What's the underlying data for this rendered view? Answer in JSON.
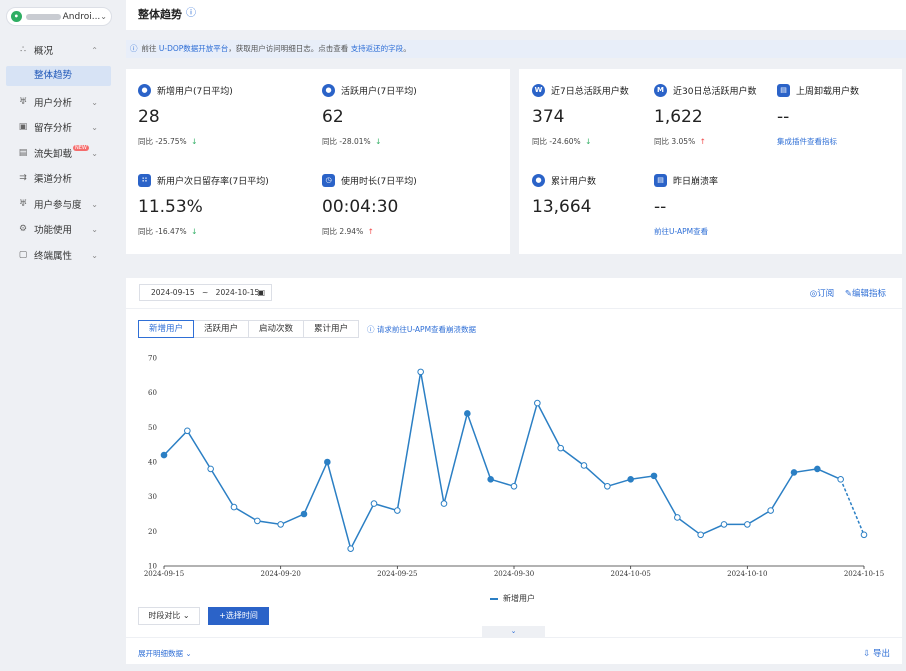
{
  "app": {
    "logo": "•",
    "name": "Androi..."
  },
  "sidebar": {
    "items": [
      {
        "label": "概况",
        "icon": "overview-icon",
        "glyph": "∴"
      },
      {
        "label": "整体趋势"
      },
      {
        "label": "用户分析",
        "icon": "user-analysis-icon",
        "glyph": "♅"
      },
      {
        "label": "留存分析",
        "icon": "retention-icon",
        "glyph": "▣"
      },
      {
        "label": "流失卸载",
        "icon": "churn-icon",
        "glyph": "▤",
        "badge": "NEW"
      },
      {
        "label": "渠道分析",
        "icon": "channel-icon",
        "glyph": "⇉"
      },
      {
        "label": "用户参与度",
        "icon": "engagement-icon",
        "glyph": "♅"
      },
      {
        "label": "功能使用",
        "icon": "feature-icon",
        "glyph": "⚙"
      },
      {
        "label": "终端属性",
        "icon": "device-icon",
        "glyph": "▢"
      }
    ]
  },
  "header": {
    "title": "整体趋势"
  },
  "notice": {
    "prefix": "前往 ",
    "link1": "U-DOP数据开放平台",
    "middle": "，获取用户访问明细日志。点击查看 ",
    "link2": "支持返还的字段",
    "suffix": "。"
  },
  "metrics": {
    "new_users": {
      "label": "新增用户(7日平均)",
      "value": "28",
      "cmp": "同比 -25.75%",
      "dir": "down"
    },
    "active_users": {
      "label": "活跃用户(7日平均)",
      "value": "62",
      "cmp": "同比 -28.01%",
      "dir": "down"
    },
    "next_day_retention": {
      "label": "新用户次日留存率(7日平均)",
      "value": "11.53%",
      "cmp": "同比 -16.47%",
      "dir": "down"
    },
    "usage_duration": {
      "label": "使用时长(7日平均)",
      "value": "00:04:30",
      "cmp": "同比 2.94%",
      "dir": "up"
    },
    "active_7d": {
      "label": "近7日总活跃用户数",
      "value": "374",
      "cmp": "同比 -24.60%",
      "dir": "down",
      "icon": "W"
    },
    "active_30d": {
      "label": "近30日总活跃用户数",
      "value": "1,622",
      "cmp": "同比 3.05%",
      "dir": "up",
      "icon": "M"
    },
    "uninstall_last_week": {
      "label": "上周卸载用户数",
      "value": "--",
      "link": "集成插件查看指标"
    },
    "total_users": {
      "label": "累计用户数",
      "value": "13,664"
    },
    "crash_rate": {
      "label": "昨日崩溃率",
      "value": "--",
      "link": "前往U-APM查看"
    }
  },
  "arrows": {
    "down": "↓",
    "up": "↑"
  },
  "trend": {
    "date_start": "2024-09-15",
    "date_sep": "~",
    "date_end": "2024-10-15",
    "subscribe": "◎订阅",
    "edit_metrics": "✎编辑指标",
    "tabs": [
      "新增用户",
      "活跃用户",
      "启动次数",
      "累计用户"
    ],
    "tab_hint": "ⓘ 请求前往U-APM查看崩溃数据",
    "compare_btn": "时段对比 ⌄",
    "select_time_btn": "+选择时间",
    "collapse": "⌄",
    "expand_detail": "展开明细数据 ⌄",
    "export": "⇩ 导出"
  },
  "chart_data": {
    "type": "line",
    "x": [
      "2024-09-15",
      "2024-09-16",
      "2024-09-17",
      "2024-09-18",
      "2024-09-19",
      "2024-09-20",
      "2024-09-21",
      "2024-09-22",
      "2024-09-23",
      "2024-09-24",
      "2024-09-25",
      "2024-09-26",
      "2024-09-27",
      "2024-09-28",
      "2024-09-29",
      "2024-09-30",
      "2024-10-01",
      "2024-10-02",
      "2024-10-03",
      "2024-10-04",
      "2024-10-05",
      "2024-10-06",
      "2024-10-07",
      "2024-10-08",
      "2024-10-09",
      "2024-10-10",
      "2024-10-11",
      "2024-10-12",
      "2024-10-13",
      "2024-10-14",
      "2024-10-15"
    ],
    "x_tick_labels": [
      "2024-09-15",
      "2024-09-20",
      "2024-09-25",
      "2024-09-30",
      "2024-10-05",
      "2024-10-10",
      "2024-10-15"
    ],
    "series": [
      {
        "name": "新增用户",
        "values": [
          42,
          49,
          38,
          27,
          23,
          22,
          25,
          40,
          15,
          28,
          26,
          66,
          28,
          54,
          35,
          33,
          57,
          44,
          39,
          33,
          35,
          36,
          24,
          19,
          22,
          22,
          26,
          37,
          38,
          35,
          19
        ],
        "weekend_markers": [
          0,
          6,
          7,
          13,
          14,
          20,
          21,
          27,
          28
        ],
        "dashed_from_index": 29
      }
    ],
    "ylim": [
      10,
      70
    ],
    "yticks": [
      10,
      20,
      30,
      40,
      50,
      60,
      70
    ],
    "color": "#2b7fc4",
    "legend": "bottom"
  }
}
